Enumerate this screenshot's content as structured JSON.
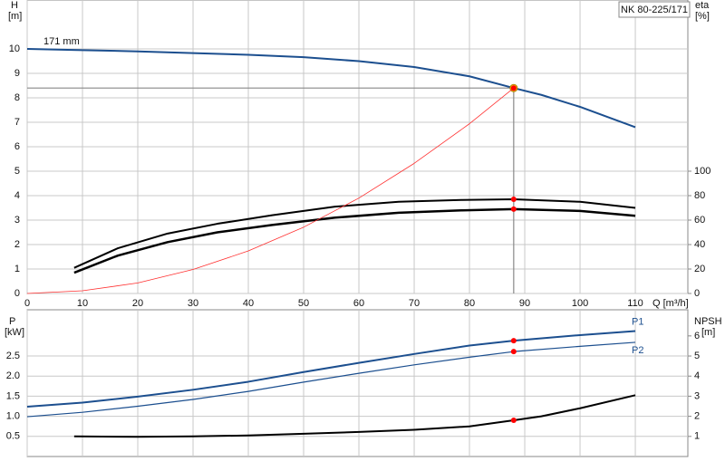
{
  "chart_data": [
    {
      "type": "line",
      "title": "NK 80-225/171",
      "ylabel": "H",
      "ylabel_unit": "[m]",
      "y2label": "eta",
      "y2label_unit": "[%]",
      "xlabel": "Q [m³/h]",
      "xlim": [
        0,
        119.5
      ],
      "xticks": [
        0,
        10,
        20,
        30,
        40,
        50,
        60,
        70,
        80,
        90,
        100,
        110
      ],
      "ylim": [
        0,
        12
      ],
      "yticks": [
        0,
        1,
        2,
        3,
        4,
        5,
        6,
        7,
        8,
        9,
        10
      ],
      "y2lim": [
        0,
        240
      ],
      "y2ticks": [
        0,
        20,
        40,
        60,
        80,
        100
      ],
      "grid": true,
      "duty_x": 88,
      "duty_color": "#ff0000",
      "series_label_position": "start",
      "series": [
        {
          "name": "171 mm",
          "color": "#1c4f8f",
          "linewidth": 2,
          "marker_color": "#ffcc00",
          "guide": true,
          "x": [
            0,
            10,
            20,
            30,
            40,
            50,
            60,
            70,
            80,
            88,
            93,
            100,
            110
          ],
          "values": [
            10,
            9.95,
            9.9,
            9.83,
            9.76,
            9.66,
            9.5,
            9.26,
            8.88,
            8.4,
            8.12,
            7.63,
            6.8
          ]
        },
        {
          "color": "#000000",
          "linewidth": 2,
          "axis": "y2",
          "x": [
            8.5,
            16.4,
            25.4,
            34.4,
            44.3,
            55.7,
            67.2,
            78.7,
            88,
            100,
            110
          ],
          "values": [
            21,
            37,
            49,
            57,
            64,
            71,
            75,
            76.5,
            77,
            75,
            70
          ]
        },
        {
          "color": "#000000",
          "linewidth": 2.5,
          "axis": "y2",
          "x": [
            8.5,
            16.4,
            25.4,
            34.4,
            44.3,
            55.7,
            67.2,
            78.7,
            88,
            100,
            110
          ],
          "values": [
            17,
            31,
            42,
            50,
            56,
            62,
            66,
            68,
            69,
            67.5,
            63.5
          ]
        },
        {
          "color": "#ff3030",
          "linewidth": 0.8,
          "x": [
            0,
            10,
            20,
            30,
            40,
            50,
            60,
            70,
            80,
            88
          ],
          "values": [
            0,
            0.11,
            0.43,
            0.98,
            1.74,
            2.71,
            3.9,
            5.32,
            6.94,
            8.4
          ]
        }
      ]
    },
    {
      "type": "line",
      "ylabel": "P",
      "ylabel_unit": "[kW]",
      "y2label": "NPSH",
      "y2label_unit": "[m]",
      "ylim": [
        0,
        3.65
      ],
      "yticks": [
        0.5,
        {
          "value": 1.0,
          "label": "1.0"
        },
        1.5,
        {
          "value": 2.0,
          "label": "2.0"
        },
        2.5
      ],
      "y2lim": [
        0,
        7.3
      ],
      "y2ticks": [
        1,
        2,
        3,
        4,
        5,
        6
      ],
      "grid": true,
      "duty_color": "#ff0000",
      "series_label_position": "end",
      "series": [
        {
          "name": "P1",
          "color": "#1c4f8f",
          "linewidth": 2,
          "x": [
            0,
            10,
            20,
            30,
            40,
            50,
            60,
            70,
            80,
            88,
            100,
            110
          ],
          "values": [
            1.24,
            1.34,
            1.49,
            1.66,
            1.86,
            2.1,
            2.33,
            2.55,
            2.76,
            2.88,
            3.02,
            3.12
          ]
        },
        {
          "name": "P2",
          "color": "#1c4f8f",
          "linewidth": 1.2,
          "x": [
            0,
            10,
            20,
            30,
            40,
            50,
            60,
            70,
            80,
            88,
            100,
            110
          ],
          "values": [
            0.99,
            1.1,
            1.25,
            1.42,
            1.62,
            1.85,
            2.07,
            2.28,
            2.47,
            2.61,
            2.74,
            2.84
          ]
        },
        {
          "color": "#000000",
          "linewidth": 2,
          "axis": "y2",
          "x": [
            8.5,
            20,
            30,
            40,
            50,
            60,
            70,
            80,
            88,
            93,
            100,
            110
          ],
          "values": [
            1.0,
            0.98,
            1.0,
            1.05,
            1.13,
            1.22,
            1.33,
            1.5,
            1.8,
            2.0,
            2.4,
            3.05
          ]
        }
      ]
    }
  ]
}
